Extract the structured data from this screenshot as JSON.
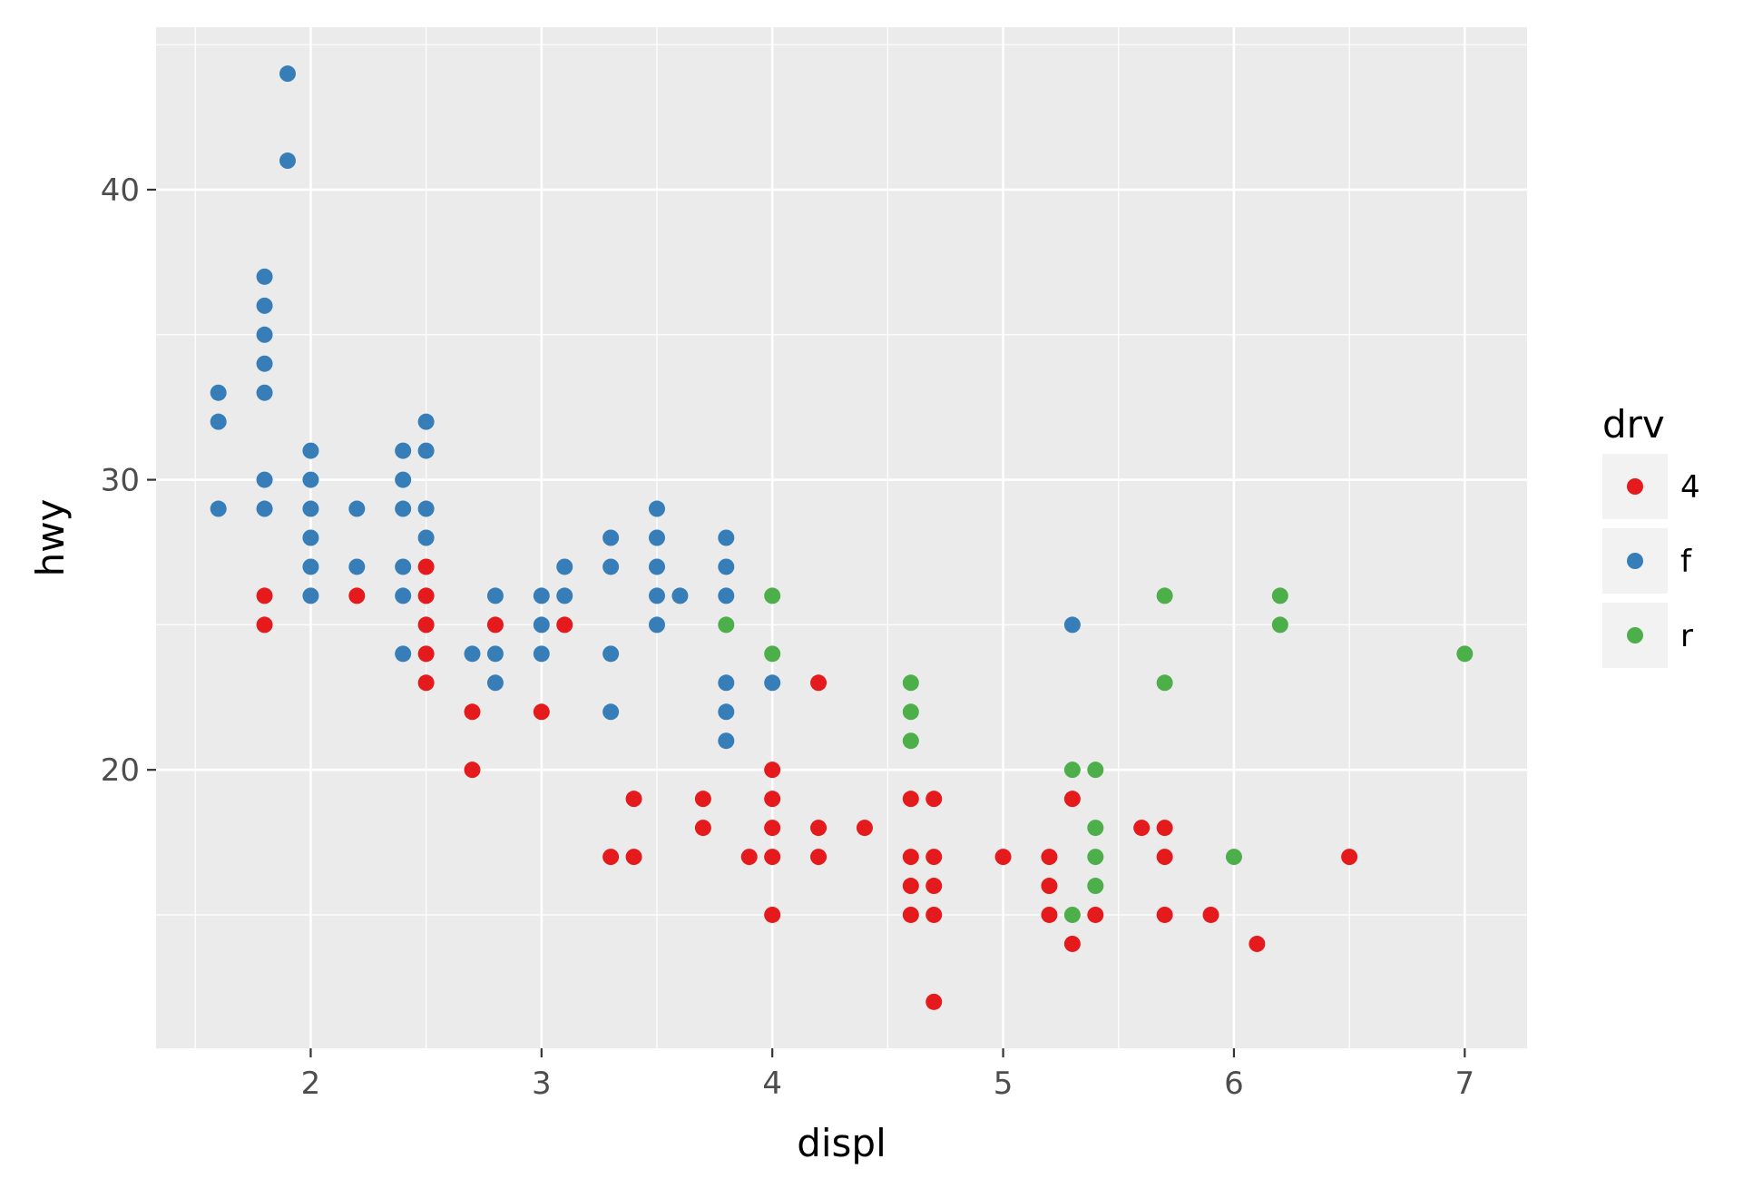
{
  "chart_data": {
    "type": "scatter",
    "title": "",
    "xlabel": "displ",
    "ylabel": "hwy",
    "xlim": [
      1.33,
      7.27
    ],
    "ylim": [
      10.4,
      45.6
    ],
    "x_ticks": [
      2,
      3,
      4,
      5,
      6,
      7
    ],
    "y_ticks": [
      20,
      30,
      40
    ],
    "grid": true,
    "panel_background": "#ebebeb",
    "legend": {
      "title": "drv",
      "placement": "right",
      "entries": [
        {
          "name": "4",
          "color": "#e41a1c"
        },
        {
          "name": "f",
          "color": "#377eb8"
        },
        {
          "name": "r",
          "color": "#4daf4a"
        }
      ]
    },
    "series": [
      {
        "name": "4",
        "color": "#e41a1c",
        "points": [
          [
            1.8,
            26
          ],
          [
            1.8,
            25
          ],
          [
            2.2,
            26
          ],
          [
            2.5,
            27
          ],
          [
            2.5,
            26
          ],
          [
            2.5,
            25
          ],
          [
            2.5,
            24
          ],
          [
            2.5,
            23
          ],
          [
            2.7,
            22
          ],
          [
            2.7,
            20
          ],
          [
            2.8,
            25
          ],
          [
            3.0,
            22
          ],
          [
            3.1,
            25
          ],
          [
            3.3,
            17
          ],
          [
            3.4,
            19
          ],
          [
            3.4,
            17
          ],
          [
            3.7,
            19
          ],
          [
            3.7,
            18
          ],
          [
            3.9,
            17
          ],
          [
            4.0,
            20
          ],
          [
            4.0,
            19
          ],
          [
            4.0,
            18
          ],
          [
            4.0,
            17
          ],
          [
            4.0,
            15
          ],
          [
            4.2,
            23
          ],
          [
            4.2,
            18
          ],
          [
            4.2,
            17
          ],
          [
            4.4,
            18
          ],
          [
            4.6,
            19
          ],
          [
            4.6,
            17
          ],
          [
            4.6,
            16
          ],
          [
            4.6,
            15
          ],
          [
            4.7,
            19
          ],
          [
            4.7,
            17
          ],
          [
            4.7,
            16
          ],
          [
            4.7,
            15
          ],
          [
            4.7,
            12
          ],
          [
            5.0,
            17
          ],
          [
            5.2,
            17
          ],
          [
            5.2,
            16
          ],
          [
            5.2,
            15
          ],
          [
            5.3,
            19
          ],
          [
            5.3,
            14
          ],
          [
            5.4,
            15
          ],
          [
            5.6,
            18
          ],
          [
            5.7,
            18
          ],
          [
            5.7,
            17
          ],
          [
            5.7,
            15
          ],
          [
            5.9,
            15
          ],
          [
            6.1,
            14
          ],
          [
            6.5,
            17
          ]
        ]
      },
      {
        "name": "f",
        "color": "#377eb8",
        "points": [
          [
            1.6,
            33
          ],
          [
            1.6,
            32
          ],
          [
            1.6,
            29
          ],
          [
            1.8,
            37
          ],
          [
            1.8,
            36
          ],
          [
            1.8,
            35
          ],
          [
            1.8,
            34
          ],
          [
            1.8,
            33
          ],
          [
            1.8,
            30
          ],
          [
            1.8,
            29
          ],
          [
            1.9,
            44
          ],
          [
            1.9,
            41
          ],
          [
            2.0,
            31
          ],
          [
            2.0,
            30
          ],
          [
            2.0,
            29
          ],
          [
            2.0,
            28
          ],
          [
            2.0,
            27
          ],
          [
            2.0,
            26
          ],
          [
            2.2,
            29
          ],
          [
            2.2,
            27
          ],
          [
            2.4,
            31
          ],
          [
            2.4,
            30
          ],
          [
            2.4,
            29
          ],
          [
            2.4,
            27
          ],
          [
            2.4,
            26
          ],
          [
            2.4,
            24
          ],
          [
            2.5,
            32
          ],
          [
            2.5,
            31
          ],
          [
            2.5,
            29
          ],
          [
            2.5,
            28
          ],
          [
            2.7,
            24
          ],
          [
            2.8,
            26
          ],
          [
            2.8,
            24
          ],
          [
            2.8,
            23
          ],
          [
            3.0,
            26
          ],
          [
            3.0,
            25
          ],
          [
            3.0,
            24
          ],
          [
            3.1,
            27
          ],
          [
            3.1,
            26
          ],
          [
            3.3,
            28
          ],
          [
            3.3,
            27
          ],
          [
            3.3,
            24
          ],
          [
            3.3,
            22
          ],
          [
            3.5,
            29
          ],
          [
            3.5,
            28
          ],
          [
            3.5,
            27
          ],
          [
            3.5,
            26
          ],
          [
            3.5,
            25
          ],
          [
            3.6,
            26
          ],
          [
            3.8,
            28
          ],
          [
            3.8,
            27
          ],
          [
            3.8,
            26
          ],
          [
            3.8,
            23
          ],
          [
            3.8,
            22
          ],
          [
            3.8,
            21
          ],
          [
            4.0,
            23
          ],
          [
            5.3,
            25
          ]
        ]
      },
      {
        "name": "r",
        "color": "#4daf4a",
        "points": [
          [
            3.8,
            25
          ],
          [
            4.0,
            26
          ],
          [
            4.0,
            24
          ],
          [
            4.6,
            23
          ],
          [
            4.6,
            22
          ],
          [
            4.6,
            21
          ],
          [
            5.3,
            20
          ],
          [
            5.3,
            15
          ],
          [
            5.4,
            20
          ],
          [
            5.4,
            18
          ],
          [
            5.4,
            17
          ],
          [
            5.4,
            16
          ],
          [
            5.7,
            26
          ],
          [
            5.7,
            23
          ],
          [
            6.0,
            17
          ],
          [
            6.2,
            26
          ],
          [
            6.2,
            25
          ],
          [
            7.0,
            24
          ]
        ]
      }
    ]
  }
}
